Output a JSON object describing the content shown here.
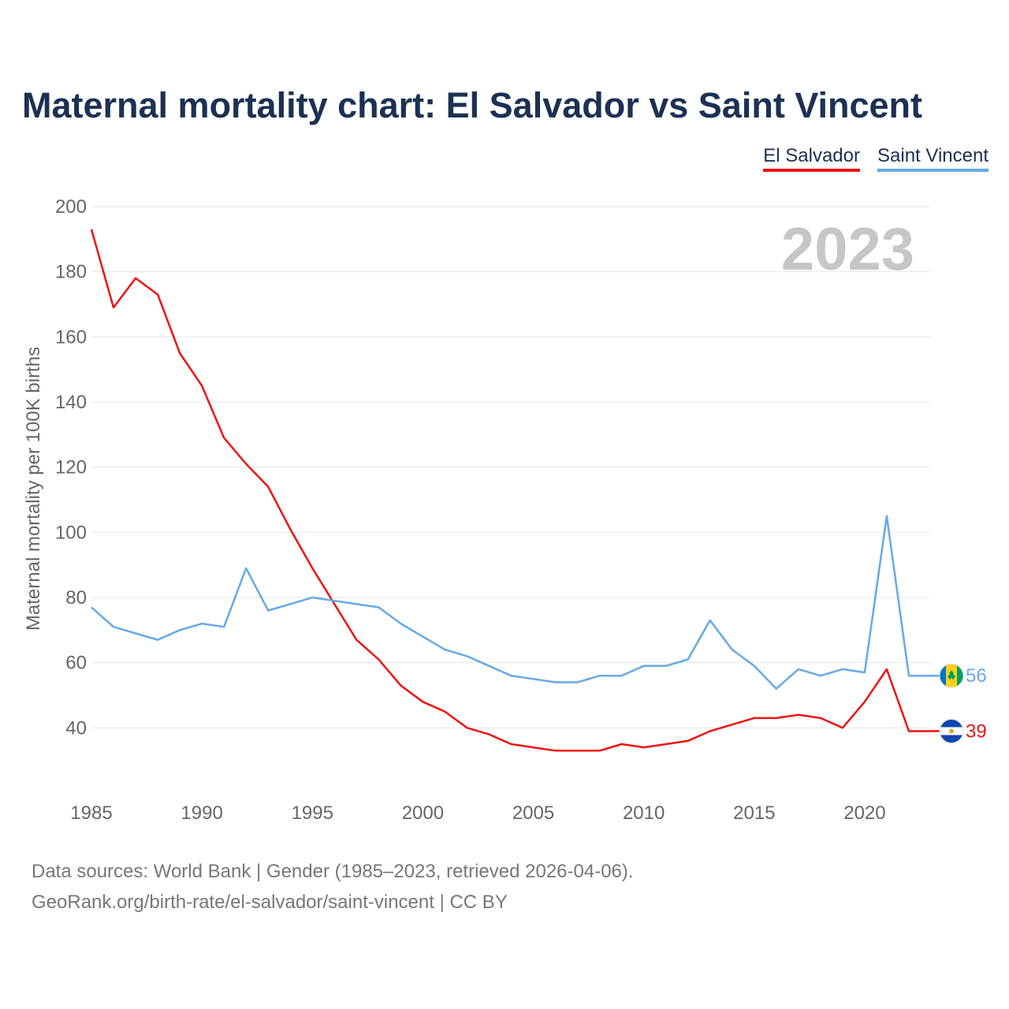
{
  "title": "Maternal mortality chart: El Salvador vs Saint Vincent",
  "legend": [
    {
      "label": "El Salvador",
      "color": "#ee1111"
    },
    {
      "label": "Saint Vincent",
      "color": "#66a9e6"
    }
  ],
  "year_label": "2023",
  "footer": {
    "line1": "Data sources: World Bank | Gender (1985–2023, retrieved 2026-04-06).",
    "line2": "GeoRank.org/birth-rate/el-salvador/saint-vincent | CC BY"
  },
  "chart_data": {
    "type": "line",
    "title": "Maternal mortality chart: El Salvador vs Saint Vincent",
    "xlabel": "",
    "ylabel": "Maternal mortality per 100K births",
    "xlim": [
      1985,
      2023
    ],
    "ylim": [
      20,
      200
    ],
    "x_ticks": [
      1985,
      1990,
      1995,
      2000,
      2005,
      2010,
      2015,
      2020
    ],
    "y_ticks": [
      40,
      60,
      80,
      100,
      120,
      140,
      160,
      180,
      200
    ],
    "grid": true,
    "x": [
      1985,
      1986,
      1987,
      1988,
      1989,
      1990,
      1991,
      1992,
      1993,
      1994,
      1995,
      1996,
      1997,
      1998,
      1999,
      2000,
      2001,
      2002,
      2003,
      2004,
      2005,
      2006,
      2007,
      2008,
      2009,
      2010,
      2011,
      2012,
      2013,
      2014,
      2015,
      2016,
      2017,
      2018,
      2019,
      2020,
      2021,
      2022,
      2023
    ],
    "series": [
      {
        "name": "El Salvador",
        "color": "#ee1111",
        "end_label": "39",
        "values": [
          193,
          169,
          178,
          173,
          155,
          145,
          129,
          121,
          114,
          101,
          89,
          78,
          67,
          61,
          53,
          48,
          45,
          40,
          38,
          35,
          34,
          33,
          33,
          33,
          35,
          34,
          35,
          36,
          39,
          41,
          43,
          43,
          44,
          43,
          40,
          48,
          58,
          39,
          39
        ]
      },
      {
        "name": "Saint Vincent",
        "color": "#66a9e6",
        "end_label": "56",
        "values": [
          77,
          71,
          69,
          67,
          70,
          72,
          71,
          89,
          76,
          78,
          80,
          79,
          78,
          77,
          72,
          68,
          64,
          62,
          59,
          56,
          55,
          54,
          54,
          56,
          56,
          59,
          59,
          61,
          73,
          64,
          59,
          52,
          58,
          56,
          58,
          57,
          105,
          56,
          56
        ]
      }
    ]
  }
}
